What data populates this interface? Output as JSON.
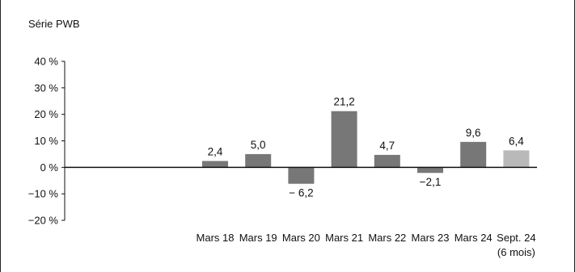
{
  "chart_data": {
    "type": "bar",
    "series_title": "Série PWB",
    "categories": [
      "Mars 18",
      "Mars 19",
      "Mars 20",
      "Mars 21",
      "Mars 22",
      "Mars 23",
      "Mars 24",
      "Sept. 24"
    ],
    "category_sublabels": [
      "",
      "",
      "",
      "",
      "",
      "",
      "",
      "(6 mois)"
    ],
    "values": [
      2.4,
      5.0,
      -6.2,
      21.2,
      4.7,
      -2.1,
      9.6,
      6.4
    ],
    "data_labels": [
      "2,4",
      "5,0",
      "− 6,2",
      "21,2",
      "4,7",
      "−2,1",
      "9,6",
      "6,4"
    ],
    "ylim": [
      -20,
      40
    ],
    "yticks": [
      40,
      30,
      20,
      10,
      0,
      -10,
      -20
    ],
    "ytick_labels": [
      "40 %",
      "30 %",
      "20 %",
      "10 %",
      "0 %",
      "−10 %",
      "−20 %"
    ],
    "grid": false,
    "colors": {
      "bar": "#777777",
      "bar_highlight": "#b9b9b9",
      "axis": "#111111"
    }
  }
}
